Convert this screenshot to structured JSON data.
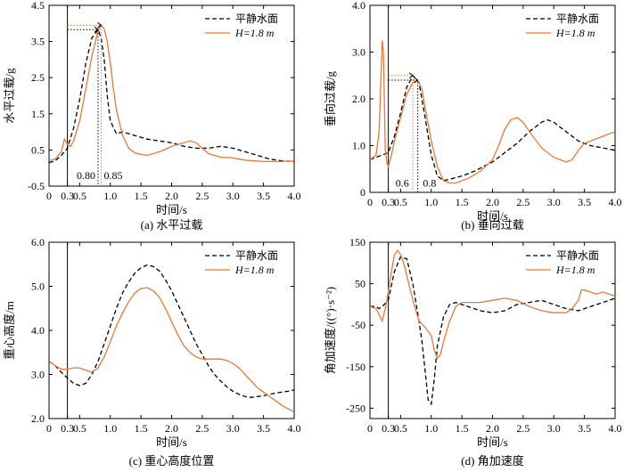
{
  "chart_data": [
    {
      "type": "line",
      "caption": "(a) 水平过载",
      "xlabel": "时间/s",
      "ylabel": "水平过载/g",
      "xlim": [
        0,
        4.0
      ],
      "ylim": [
        -0.5,
        4.5
      ],
      "xticks": [
        "0",
        "0.3",
        "0.5",
        "1.0",
        "1.5",
        "2.0",
        "2.5",
        "3.0",
        "3.5",
        "4.0"
      ],
      "xtick_values": [
        0,
        0.3,
        0.5,
        1.0,
        1.5,
        2.0,
        2.5,
        3.0,
        3.5,
        4.0
      ],
      "yticks": [
        "-0.5",
        "0.5",
        "1.5",
        "2.5",
        "3.5",
        "4.5"
      ],
      "ytick_values": [
        -0.5,
        0.5,
        1.5,
        2.5,
        3.5,
        4.5
      ],
      "legend_position": "top-right",
      "vline_x": 0.3,
      "annotations": [
        {
          "text": "0.80",
          "x": 0.8,
          "y": -0.3,
          "anchor": "end"
        },
        {
          "text": "0.85",
          "x": 0.85,
          "y": -0.3,
          "anchor": "start"
        }
      ],
      "guides": [
        {
          "from": [
            0.3,
            3.95
          ],
          "to": [
            0.85,
            3.95
          ],
          "to_y": -0.5
        },
        {
          "from": [
            0.3,
            3.83
          ],
          "to": [
            0.8,
            3.83
          ],
          "to_y": -0.5
        }
      ],
      "series": [
        {
          "name": "平静水面",
          "dash": true,
          "x": [
            0,
            0.1,
            0.2,
            0.3,
            0.4,
            0.5,
            0.6,
            0.7,
            0.8,
            0.85,
            0.9,
            0.95,
            1.0,
            1.1,
            1.2,
            1.4,
            1.6,
            1.8,
            2.0,
            2.2,
            2.4,
            2.6,
            2.8,
            3.0,
            3.2,
            3.4,
            3.6,
            3.8,
            4.0
          ],
          "y": [
            0.15,
            0.2,
            0.35,
            0.55,
            1.1,
            1.9,
            2.9,
            3.6,
            3.83,
            3.6,
            3.0,
            2.0,
            1.3,
            0.95,
            1.0,
            0.9,
            0.8,
            0.75,
            0.7,
            0.6,
            0.55,
            0.55,
            0.6,
            0.55,
            0.45,
            0.35,
            0.25,
            0.2,
            0.18
          ]
        },
        {
          "name": "H=1.8 m",
          "dash": false,
          "x": [
            0,
            0.1,
            0.2,
            0.25,
            0.3,
            0.35,
            0.4,
            0.5,
            0.6,
            0.7,
            0.8,
            0.85,
            0.9,
            0.95,
            1.0,
            1.05,
            1.1,
            1.2,
            1.3,
            1.4,
            1.5,
            1.6,
            1.7,
            1.8,
            1.9,
            2.0,
            2.1,
            2.2,
            2.3,
            2.4,
            2.5,
            2.6,
            2.8,
            3.0,
            3.2,
            3.5,
            3.8,
            4.0
          ],
          "y": [
            0.2,
            0.25,
            0.45,
            0.8,
            0.65,
            0.6,
            0.75,
            1.3,
            2.2,
            3.1,
            3.8,
            3.95,
            3.85,
            3.5,
            2.9,
            2.2,
            1.6,
            0.9,
            0.55,
            0.42,
            0.38,
            0.35,
            0.4,
            0.45,
            0.52,
            0.6,
            0.65,
            0.7,
            0.75,
            0.7,
            0.55,
            0.4,
            0.3,
            0.28,
            0.22,
            0.18,
            0.18,
            0.2
          ]
        }
      ]
    },
    {
      "type": "line",
      "caption": "(b) 垂向过载",
      "xlabel": "时间/s",
      "ylabel": "垂向过载/g",
      "xlim": [
        0,
        4.0
      ],
      "ylim": [
        0,
        4.0
      ],
      "xticks": [
        "0",
        "0.3",
        "0.5",
        "1.0",
        "1.5",
        "2.0",
        "2.5",
        "3.0",
        "3.5",
        "4.0"
      ],
      "xtick_values": [
        0,
        0.3,
        0.5,
        1.0,
        1.5,
        2.0,
        2.5,
        3.0,
        3.5,
        4.0
      ],
      "yticks": [
        "0",
        "1.0",
        "2.0",
        "3.0",
        "4.0"
      ],
      "ytick_values": [
        0,
        1.0,
        2.0,
        3.0,
        4.0
      ],
      "legend_position": "top-right",
      "vline_x": 0.3,
      "annotations": [
        {
          "text": "0.6",
          "x": 0.68,
          "y": 0.12,
          "anchor": "end"
        },
        {
          "text": "0.8",
          "x": 0.82,
          "y": 0.12,
          "anchor": "start"
        }
      ],
      "guides": [
        {
          "from": [
            0.3,
            2.5
          ],
          "to": [
            0.7,
            2.5
          ],
          "to_y": 0
        },
        {
          "from": [
            0.3,
            2.4
          ],
          "to": [
            0.78,
            2.4
          ],
          "to_y": 0
        }
      ],
      "series": [
        {
          "name": "平静水面",
          "dash": true,
          "x": [
            0,
            0.1,
            0.2,
            0.3,
            0.4,
            0.5,
            0.6,
            0.7,
            0.8,
            0.9,
            1.0,
            1.1,
            1.2,
            1.3,
            1.5,
            1.7,
            2.0,
            2.2,
            2.4,
            2.6,
            2.8,
            2.9,
            3.0,
            3.2,
            3.4,
            3.6,
            3.8,
            4.0
          ],
          "y": [
            0.7,
            0.75,
            0.8,
            0.85,
            1.2,
            1.7,
            2.25,
            2.5,
            2.35,
            1.6,
            0.8,
            0.35,
            0.25,
            0.28,
            0.35,
            0.45,
            0.65,
            0.85,
            1.05,
            1.3,
            1.5,
            1.55,
            1.5,
            1.3,
            1.1,
            1.0,
            0.95,
            0.9
          ]
        },
        {
          "name": "H=1.8 m",
          "dash": false,
          "x": [
            0,
            0.1,
            0.15,
            0.2,
            0.22,
            0.25,
            0.28,
            0.3,
            0.35,
            0.4,
            0.5,
            0.6,
            0.7,
            0.78,
            0.85,
            0.9,
            1.0,
            1.1,
            1.2,
            1.3,
            1.4,
            1.6,
            1.8,
            2.0,
            2.1,
            2.2,
            2.3,
            2.4,
            2.5,
            2.6,
            2.8,
            3.0,
            3.2,
            3.3,
            3.4,
            3.5,
            3.6,
            3.8,
            4.0
          ],
          "y": [
            0.7,
            0.8,
            1.3,
            3.25,
            3.0,
            0.9,
            0.6,
            0.55,
            0.8,
            1.1,
            1.6,
            2.1,
            2.35,
            2.4,
            2.2,
            1.8,
            1.1,
            0.55,
            0.25,
            0.2,
            0.2,
            0.3,
            0.45,
            0.7,
            1.0,
            1.35,
            1.55,
            1.6,
            1.5,
            1.3,
            0.95,
            0.75,
            0.65,
            0.7,
            0.9,
            1.05,
            1.1,
            1.2,
            1.3
          ]
        }
      ]
    },
    {
      "type": "line",
      "caption": "(c) 重心高度位置",
      "xlabel": "时间/s",
      "ylabel": "重心高度/m",
      "xlim": [
        0,
        4.0
      ],
      "ylim": [
        2.0,
        6.0
      ],
      "xticks": [
        "0",
        "0.3",
        "0.5",
        "1.0",
        "1.5",
        "2.0",
        "2.5",
        "3.0",
        "3.5",
        "4.0"
      ],
      "xtick_values": [
        0,
        0.3,
        0.5,
        1.0,
        1.5,
        2.0,
        2.5,
        3.0,
        3.5,
        4.0
      ],
      "yticks": [
        "2.0",
        "3.0",
        "4.0",
        "5.0",
        "6.0"
      ],
      "ytick_values": [
        2.0,
        3.0,
        4.0,
        5.0,
        6.0
      ],
      "legend_position": "top-right",
      "vline_x": 0.3,
      "annotations": [],
      "guides": [],
      "series": [
        {
          "name": "平静水面",
          "dash": true,
          "x": [
            0,
            0.1,
            0.2,
            0.3,
            0.4,
            0.5,
            0.6,
            0.7,
            0.8,
            0.9,
            1.0,
            1.1,
            1.2,
            1.3,
            1.4,
            1.5,
            1.6,
            1.7,
            1.8,
            1.9,
            2.0,
            2.1,
            2.2,
            2.3,
            2.4,
            2.5,
            2.6,
            2.7,
            2.8,
            2.9,
            3.0,
            3.1,
            3.2,
            3.3,
            3.4,
            3.5,
            3.6,
            3.7,
            3.8,
            3.9,
            4.0
          ],
          "y": [
            3.3,
            3.2,
            3.05,
            2.92,
            2.8,
            2.75,
            2.8,
            3.0,
            3.3,
            3.7,
            4.1,
            4.5,
            4.85,
            5.1,
            5.3,
            5.42,
            5.48,
            5.45,
            5.35,
            5.15,
            4.9,
            4.6,
            4.3,
            4.0,
            3.7,
            3.45,
            3.2,
            3.0,
            2.85,
            2.72,
            2.62,
            2.55,
            2.5,
            2.48,
            2.5,
            2.52,
            2.55,
            2.58,
            2.6,
            2.62,
            2.65
          ]
        },
        {
          "name": "H=1.8 m",
          "dash": false,
          "x": [
            0,
            0.1,
            0.2,
            0.3,
            0.4,
            0.5,
            0.6,
            0.7,
            0.8,
            0.9,
            1.0,
            1.1,
            1.2,
            1.3,
            1.4,
            1.5,
            1.6,
            1.7,
            1.8,
            1.9,
            2.0,
            2.1,
            2.2,
            2.3,
            2.4,
            2.5,
            2.6,
            2.7,
            2.8,
            2.9,
            3.0,
            3.1,
            3.2,
            3.3,
            3.4,
            3.5,
            3.6,
            3.7,
            3.8,
            3.9,
            4.0
          ],
          "y": [
            3.3,
            3.2,
            3.12,
            3.12,
            3.15,
            3.15,
            3.1,
            3.05,
            3.15,
            3.4,
            3.75,
            4.1,
            4.4,
            4.65,
            4.85,
            4.95,
            4.97,
            4.9,
            4.75,
            4.5,
            4.2,
            3.9,
            3.65,
            3.5,
            3.4,
            3.35,
            3.35,
            3.35,
            3.35,
            3.32,
            3.25,
            3.15,
            3.0,
            2.85,
            2.7,
            2.6,
            2.5,
            2.4,
            2.3,
            2.22,
            2.15
          ]
        }
      ]
    },
    {
      "type": "line",
      "caption": "(d) 角加速度",
      "xlabel": "时间/s",
      "ylabel": "角加速度/((°)·s⁻²)",
      "xlim": [
        0,
        4.0
      ],
      "ylim": [
        -275,
        150
      ],
      "xticks": [
        "0",
        "0.3",
        "0.5",
        "1.0",
        "1.5",
        "2.0",
        "2.5",
        "3.0",
        "3.5",
        "4.0"
      ],
      "xtick_values": [
        0,
        0.3,
        0.5,
        1.0,
        1.5,
        2.0,
        2.5,
        3.0,
        3.5,
        4.0
      ],
      "yticks": [
        "-250",
        "-150",
        "-50",
        "50",
        "150"
      ],
      "ytick_values": [
        -250,
        -150,
        -50,
        50,
        150
      ],
      "legend_position": "top-right",
      "vline_x": 0.3,
      "annotations": [],
      "guides": [],
      "series": [
        {
          "name": "平静水面",
          "dash": true,
          "x": [
            0,
            0.1,
            0.15,
            0.2,
            0.3,
            0.4,
            0.5,
            0.6,
            0.7,
            0.8,
            0.85,
            0.9,
            0.95,
            1.0,
            1.05,
            1.1,
            1.2,
            1.3,
            1.4,
            1.6,
            1.8,
            2.0,
            2.2,
            2.4,
            2.6,
            2.8,
            3.0,
            3.2,
            3.4,
            3.6,
            3.8,
            4.0
          ],
          "y": [
            -5,
            -5,
            -10,
            -5,
            10,
            80,
            115,
            110,
            50,
            -40,
            -90,
            -160,
            -230,
            -240,
            -180,
            -100,
            -30,
            0,
            5,
            -5,
            -15,
            -20,
            -15,
            0,
            5,
            10,
            0,
            -10,
            -15,
            -5,
            5,
            15
          ]
        },
        {
          "name": "H=1.8 m",
          "dash": false,
          "x": [
            0,
            0.1,
            0.15,
            0.2,
            0.25,
            0.3,
            0.35,
            0.4,
            0.45,
            0.5,
            0.55,
            0.6,
            0.7,
            0.8,
            0.9,
            1.0,
            1.05,
            1.1,
            1.15,
            1.2,
            1.3,
            1.4,
            1.5,
            1.6,
            1.8,
            2.0,
            2.2,
            2.4,
            2.6,
            2.8,
            3.0,
            3.2,
            3.3,
            3.4,
            3.45,
            3.5,
            3.6,
            3.7,
            3.8,
            4.0
          ],
          "y": [
            -5,
            -10,
            -25,
            -40,
            -10,
            30,
            80,
            120,
            130,
            120,
            100,
            70,
            10,
            -40,
            -55,
            -75,
            -110,
            -130,
            -120,
            -90,
            -40,
            -5,
            5,
            5,
            5,
            10,
            15,
            10,
            -5,
            -15,
            -20,
            -20,
            -10,
            10,
            35,
            35,
            30,
            25,
            30,
            20
          ]
        }
      ]
    }
  ]
}
